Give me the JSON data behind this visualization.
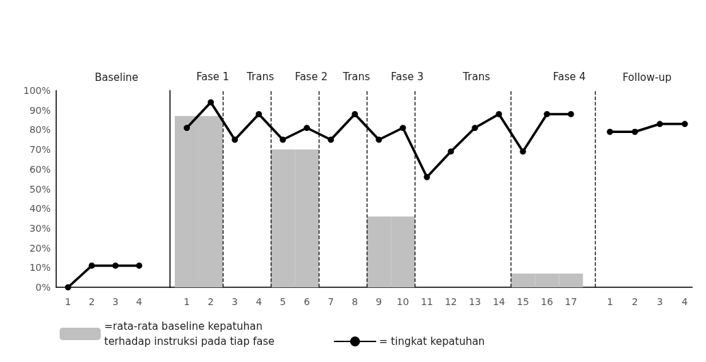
{
  "chart_data": [
    {
      "type": "line",
      "title": "Baseline",
      "xlim": [
        0.5,
        5.3
      ],
      "xticks": [
        1,
        2,
        3,
        4
      ],
      "ylim": [
        0,
        100
      ],
      "yticks": [
        {
          "value": 0,
          "label": "0%"
        },
        {
          "value": 10,
          "label": "10%"
        },
        {
          "value": 20,
          "label": "20%"
        },
        {
          "value": 30,
          "label": "30%"
        },
        {
          "value": 40,
          "label": "40%"
        },
        {
          "value": 50,
          "label": "50%"
        },
        {
          "value": 60,
          "label": "60%"
        },
        {
          "value": 70,
          "label": "70%"
        },
        {
          "value": 80,
          "label": "80%"
        },
        {
          "value": 90,
          "label": "90%"
        },
        {
          "value": 100,
          "label": "100%"
        }
      ],
      "series": [
        {
          "color": "#000000",
          "x": [
            1,
            2,
            3,
            4
          ],
          "values": [
            0,
            11,
            11,
            11
          ]
        }
      ],
      "marker": "circle",
      "line_style": "solid",
      "grid": false
    },
    {
      "type": "line",
      "xlim": [
        0.3,
        18
      ],
      "xticks": [
        1,
        2,
        3,
        4,
        5,
        6,
        7,
        8,
        9,
        10,
        11,
        12,
        13,
        14,
        15,
        16,
        17
      ],
      "ylim": [
        0,
        100
      ],
      "tick_labels": "x",
      "series": [
        {
          "type": "bar",
          "name": "=rata-rata baseline kepatuhan terhadap instruksi pada tiap fase",
          "color": "#c0c0c0",
          "x": [
            1,
            2,
            5,
            6,
            9,
            10,
            15,
            16,
            17
          ],
          "values": [
            87,
            87,
            70,
            70,
            36,
            36,
            7,
            7,
            7
          ]
        },
        {
          "name": "= tingkat kepatuhan",
          "color": "#000000",
          "x": [
            1,
            2,
            3,
            4,
            5,
            6,
            7,
            8,
            9,
            10,
            11,
            12,
            13,
            14,
            15,
            16,
            17
          ],
          "values": [
            81,
            94,
            75,
            88,
            75,
            81,
            75,
            88,
            75,
            81,
            56,
            69,
            81,
            88,
            69,
            88,
            88
          ]
        }
      ],
      "ref_lines": [
        {
          "axis": "x",
          "value": 2.5,
          "line_style": "dashed"
        },
        {
          "axis": "x",
          "value": 4.5,
          "line_style": "dashed"
        },
        {
          "axis": "x",
          "value": 6.5,
          "line_style": "dashed"
        },
        {
          "axis": "x",
          "value": 8.5,
          "line_style": "dashed"
        },
        {
          "axis": "x",
          "value": 10.5,
          "line_style": "dashed"
        },
        {
          "axis": "x",
          "value": 14.5,
          "line_style": "dashed"
        },
        {
          "axis": "x",
          "value": 18,
          "line_style": "dashed"
        }
      ],
      "annotations": [
        "Fase 1",
        "Trans",
        "Fase 2",
        "Trans",
        "Fase 3",
        "Trans",
        "Fase 4"
      ],
      "marker": "circle",
      "line_style": "solid",
      "grid": false,
      "legend": "bottom left"
    },
    {
      "type": "line",
      "title": "Follow-up",
      "xlim": [
        0.4,
        4.3
      ],
      "xticks": [
        1,
        2,
        3,
        4
      ],
      "ylim": [
        0,
        100
      ],
      "tick_labels": "x",
      "series": [
        {
          "color": "#000000",
          "x": [
            1,
            2,
            3,
            4
          ],
          "values": [
            79,
            79,
            83,
            83
          ]
        }
      ],
      "marker": "circle",
      "line_style": "solid",
      "grid": false
    }
  ]
}
